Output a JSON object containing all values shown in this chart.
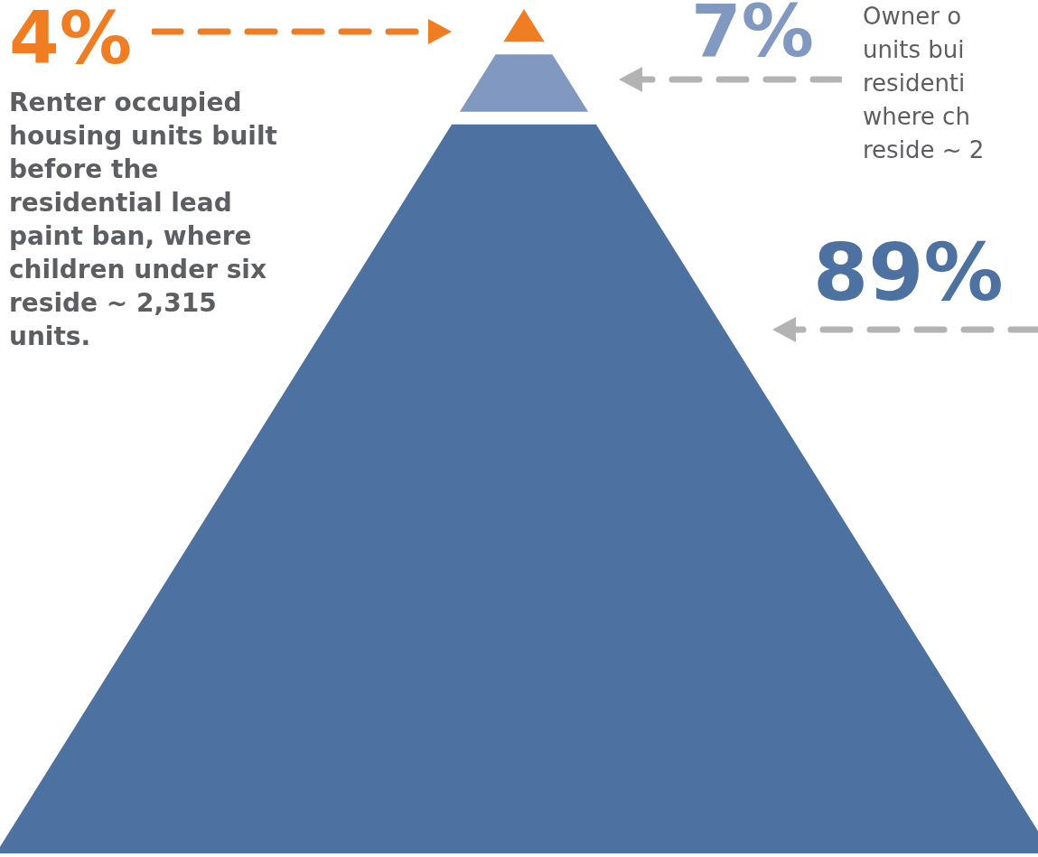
{
  "chart_data": {
    "type": "other",
    "categories": [
      "Renter occupied housing units built before the residential lead paint ban, where children under six reside ~ 2,315 units.",
      "Owner o\nunits bui\nresidenti\nwhere ch\nreside ~ 2",
      null
    ],
    "values": [
      4,
      7,
      89
    ],
    "value_labels": [
      "4%",
      "7%",
      "89%"
    ],
    "colors": [
      "#f07d22",
      "#8199c0",
      "#4d71a0"
    ]
  }
}
